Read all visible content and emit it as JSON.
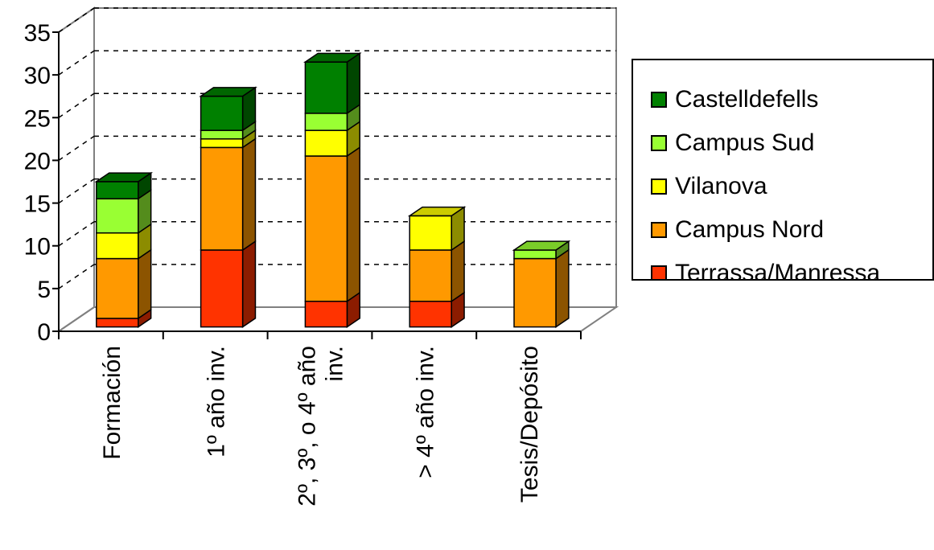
{
  "chart_data": {
    "type": "bar",
    "stacked": true,
    "three_d": true,
    "categories": [
      [
        "Formación"
      ],
      [
        "1º año inv."
      ],
      [
        "2º, 3º, o 4º año",
        "inv."
      ],
      [
        "> 4º año inv."
      ],
      [
        "Tesis/Depósito"
      ]
    ],
    "series": [
      {
        "name": "Terrassa/Manressa",
        "values": [
          1,
          9,
          3,
          3,
          0
        ],
        "color": "#ff3300"
      },
      {
        "name": "Campus Nord",
        "values": [
          7,
          12,
          17,
          6,
          8
        ],
        "color": "#ff9900"
      },
      {
        "name": "Vilanova",
        "values": [
          3,
          1,
          3,
          4,
          0
        ],
        "color": "#ffff00"
      },
      {
        "name": "Campus Sud",
        "values": [
          4,
          1,
          2,
          0,
          1
        ],
        "color": "#99ff33"
      },
      {
        "name": "Castelldefells",
        "values": [
          2,
          4,
          6,
          0,
          0
        ],
        "color": "#008000"
      }
    ],
    "y_ticks": [
      "0",
      "5",
      "10",
      "15",
      "20",
      "25",
      "30",
      "35"
    ],
    "ylim": [
      0,
      35
    ],
    "grid": "dashed horizontal",
    "legend_position": "right",
    "legend_order": [
      "Castelldefells",
      "Campus Sud",
      "Vilanova",
      "Campus Nord",
      "Terrassa/Manressa"
    ],
    "title": "",
    "xlabel": "",
    "ylabel": ""
  }
}
